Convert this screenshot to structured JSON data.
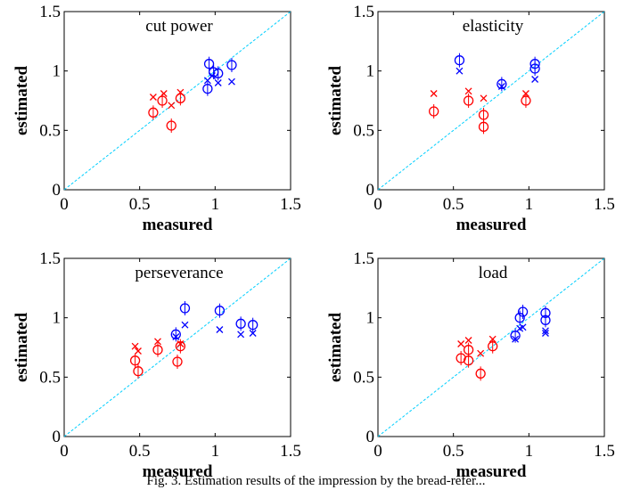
{
  "caption": "Fig. 3. Estimation results of the impression by the bread-refer...",
  "colors": {
    "red": "#ff0000",
    "blue": "#0000ff",
    "diagonal": "#00cfff"
  },
  "chart_data": [
    {
      "type": "scatter",
      "title": "cut power",
      "xlabel": "measured",
      "ylabel": "estimated",
      "xlim": [
        0,
        1.5
      ],
      "ylim": [
        0,
        1.5
      ],
      "xticks": [
        "0",
        "0.5",
        "1",
        "1.5"
      ],
      "yticks": [
        "0",
        "0.5",
        "1",
        "1.5"
      ],
      "reference_line": "y = x",
      "series": [
        {
          "color": "red",
          "marker": "o",
          "points": [
            [
              0.59,
              0.65
            ],
            [
              0.65,
              0.75
            ],
            [
              0.71,
              0.54
            ],
            [
              0.77,
              0.77
            ]
          ]
        },
        {
          "color": "red",
          "marker": "x",
          "points": [
            [
              0.59,
              0.78
            ],
            [
              0.66,
              0.81
            ],
            [
              0.71,
              0.71
            ],
            [
              0.77,
              0.82
            ]
          ]
        },
        {
          "color": "blue",
          "marker": "o",
          "points": [
            [
              0.95,
              0.85
            ],
            [
              0.96,
              1.06
            ],
            [
              0.99,
              0.99
            ],
            [
              1.02,
              0.98
            ],
            [
              1.11,
              1.05
            ]
          ]
        },
        {
          "color": "blue",
          "marker": "x",
          "points": [
            [
              0.95,
              0.92
            ],
            [
              0.98,
              0.96
            ],
            [
              1.02,
              0.9
            ],
            [
              1.11,
              0.91
            ]
          ]
        }
      ]
    },
    {
      "type": "scatter",
      "title": "elasticity",
      "xlabel": "measured",
      "ylabel": "estimated",
      "xlim": [
        0,
        1.5
      ],
      "ylim": [
        0,
        1.5
      ],
      "xticks": [
        "0",
        "0.5",
        "1",
        "1.5"
      ],
      "yticks": [
        "0",
        "0.5",
        "1",
        "1.5"
      ],
      "reference_line": "y = x",
      "series": [
        {
          "color": "red",
          "marker": "o",
          "points": [
            [
              0.37,
              0.66
            ],
            [
              0.6,
              0.75
            ],
            [
              0.7,
              0.63
            ],
            [
              0.7,
              0.53
            ],
            [
              0.98,
              0.75
            ]
          ]
        },
        {
          "color": "red",
          "marker": "x",
          "points": [
            [
              0.37,
              0.81
            ],
            [
              0.6,
              0.83
            ],
            [
              0.7,
              0.77
            ],
            [
              0.98,
              0.81
            ]
          ]
        },
        {
          "color": "blue",
          "marker": "o",
          "points": [
            [
              0.54,
              1.09
            ],
            [
              0.82,
              0.89
            ],
            [
              1.04,
              1.06
            ],
            [
              1.04,
              1.02
            ]
          ]
        },
        {
          "color": "blue",
          "marker": "x",
          "points": [
            [
              0.54,
              1.0
            ],
            [
              0.82,
              0.87
            ],
            [
              1.04,
              0.93
            ]
          ]
        }
      ]
    },
    {
      "type": "scatter",
      "title": "perseverance",
      "xlabel": "measured",
      "ylabel": "estimated",
      "xlim": [
        0,
        1.5
      ],
      "ylim": [
        0,
        1.5
      ],
      "xticks": [
        "0",
        "0.5",
        "1",
        "1.5"
      ],
      "yticks": [
        "0",
        "0.5",
        "1",
        "1.5"
      ],
      "reference_line": "y = x",
      "series": [
        {
          "color": "red",
          "marker": "o",
          "points": [
            [
              0.47,
              0.64
            ],
            [
              0.49,
              0.55
            ],
            [
              0.62,
              0.73
            ],
            [
              0.75,
              0.63
            ],
            [
              0.77,
              0.76
            ]
          ]
        },
        {
          "color": "red",
          "marker": "x",
          "points": [
            [
              0.47,
              0.76
            ],
            [
              0.49,
              0.72
            ],
            [
              0.62,
              0.8
            ],
            [
              0.77,
              0.78
            ]
          ]
        },
        {
          "color": "blue",
          "marker": "o",
          "points": [
            [
              0.74,
              0.86
            ],
            [
              0.8,
              1.08
            ],
            [
              1.03,
              1.06
            ],
            [
              1.17,
              0.95
            ],
            [
              1.25,
              0.94
            ]
          ]
        },
        {
          "color": "blue",
          "marker": "x",
          "points": [
            [
              0.74,
              0.84
            ],
            [
              0.8,
              0.94
            ],
            [
              1.03,
              0.9
            ],
            [
              1.17,
              0.86
            ],
            [
              1.25,
              0.87
            ]
          ]
        }
      ]
    },
    {
      "type": "scatter",
      "title": "load",
      "xlabel": "measured",
      "ylabel": "estimated",
      "xlim": [
        0,
        1.5
      ],
      "ylim": [
        0,
        1.5
      ],
      "xticks": [
        "0",
        "0.5",
        "1",
        "1.5"
      ],
      "yticks": [
        "0",
        "0.5",
        "1",
        "1.5"
      ],
      "reference_line": "y = x",
      "series": [
        {
          "color": "red",
          "marker": "o",
          "points": [
            [
              0.55,
              0.66
            ],
            [
              0.6,
              0.73
            ],
            [
              0.6,
              0.64
            ],
            [
              0.68,
              0.53
            ],
            [
              0.76,
              0.76
            ]
          ]
        },
        {
          "color": "red",
          "marker": "x",
          "points": [
            [
              0.55,
              0.78
            ],
            [
              0.6,
              0.81
            ],
            [
              0.68,
              0.7
            ],
            [
              0.76,
              0.82
            ]
          ]
        },
        {
          "color": "blue",
          "marker": "o",
          "points": [
            [
              0.91,
              0.85
            ],
            [
              0.94,
              1.0
            ],
            [
              0.96,
              1.05
            ],
            [
              1.11,
              1.04
            ],
            [
              1.11,
              0.98
            ]
          ]
        },
        {
          "color": "blue",
          "marker": "x",
          "points": [
            [
              0.91,
              0.82
            ],
            [
              0.94,
              0.91
            ],
            [
              0.96,
              0.92
            ],
            [
              1.11,
              0.89
            ],
            [
              1.11,
              0.87
            ]
          ]
        }
      ]
    }
  ]
}
